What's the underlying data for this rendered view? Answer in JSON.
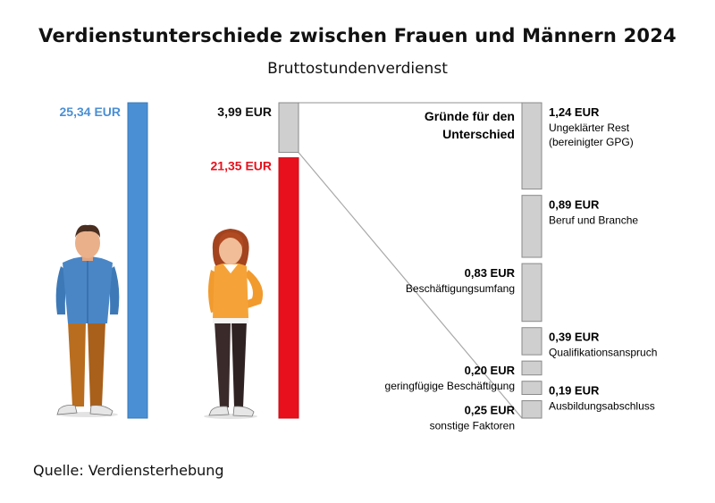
{
  "title": "Verdienstunterschiede zwischen Frauen und Männern 2024",
  "subtitle": "Bruttostundenverdienst",
  "source": "Quelle: Verdiensterhebung",
  "colors": {
    "men": "#4a8fd4",
    "women": "#e8101c",
    "gap": "#cfcfcf",
    "text": "#111111"
  },
  "chart_data": {
    "type": "bar",
    "unit": "EUR",
    "men": {
      "value": 25.34,
      "label": "25,34 EUR",
      "icon": "man-figure"
    },
    "women": {
      "value": 21.35,
      "label": "21,35 EUR",
      "icon": "woman-figure"
    },
    "gap": {
      "value": 3.99,
      "label": "3,99 EUR"
    },
    "breakdown_title": "Gründe für den Unterschied",
    "components": [
      {
        "value": 1.24,
        "amount": "1,24 EUR",
        "name": "Ungeklärter Rest (bereinigter GPG)",
        "side": "right"
      },
      {
        "value": 0.89,
        "amount": "0,89 EUR",
        "name": "Beruf und Branche",
        "side": "right"
      },
      {
        "value": 0.83,
        "amount": "0,83 EUR",
        "name": "Beschäftigungsumfang",
        "side": "left"
      },
      {
        "value": 0.39,
        "amount": "0,39 EUR",
        "name": "Qualifikationsanspruch",
        "side": "right"
      },
      {
        "value": 0.2,
        "amount": "0,20 EUR",
        "name": "geringfügige Beschäftigung",
        "side": "left"
      },
      {
        "value": 0.19,
        "amount": "0,19 EUR",
        "name": "Ausbildungsabschluss",
        "side": "right"
      },
      {
        "value": 0.25,
        "amount": "0,25 EUR",
        "name": "sonstige Faktoren",
        "side": "left"
      }
    ]
  }
}
